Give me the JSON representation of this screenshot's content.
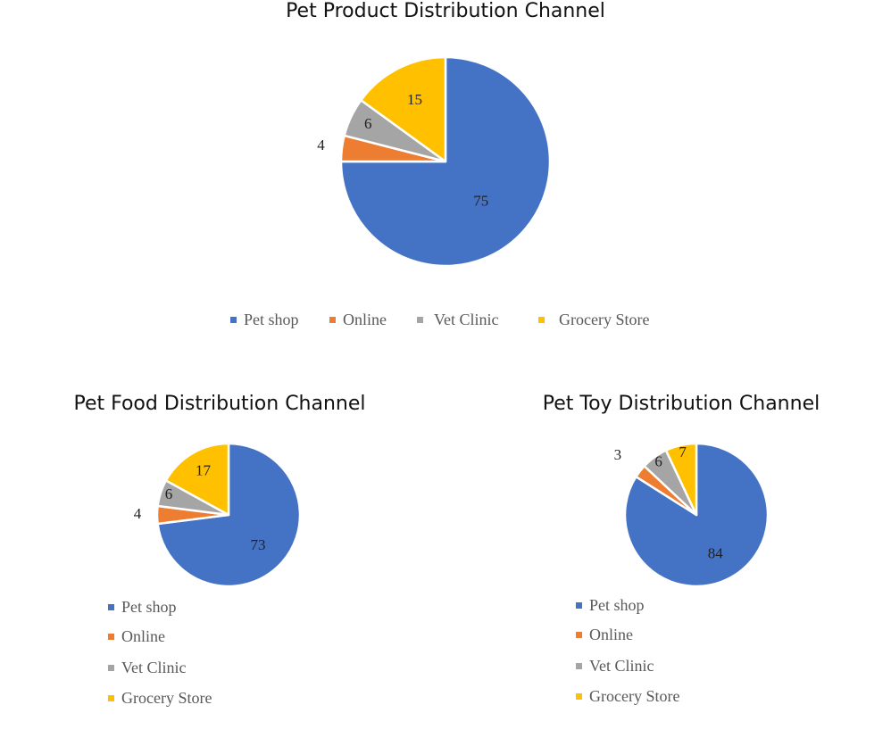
{
  "colors": {
    "Pet shop": "#4472c4",
    "Online": "#ed7d31",
    "Vet Clinic": "#a5a5a5",
    "Grocery Store": "#ffc000"
  },
  "chart_data": [
    {
      "type": "pie",
      "title": "Pet Product Distribution Channel",
      "categories": [
        "Pet shop",
        "Online",
        "Vet Clinic",
        "Grocery Store"
      ],
      "values": [
        75,
        4,
        6,
        15
      ],
      "legend": "bottom"
    },
    {
      "type": "pie",
      "title": "Pet Food Distribution Channel",
      "categories": [
        "Pet shop",
        "Online",
        "Vet Clinic",
        "Grocery Store"
      ],
      "values": [
        73,
        4,
        6,
        17
      ],
      "legend": "bottom"
    },
    {
      "type": "pie",
      "title": "Pet Toy Distribution Channel",
      "categories": [
        "Pet shop",
        "Online",
        "Vet Clinic",
        "Grocery Store"
      ],
      "values": [
        84,
        3,
        6,
        7
      ],
      "legend": "bottom"
    }
  ]
}
